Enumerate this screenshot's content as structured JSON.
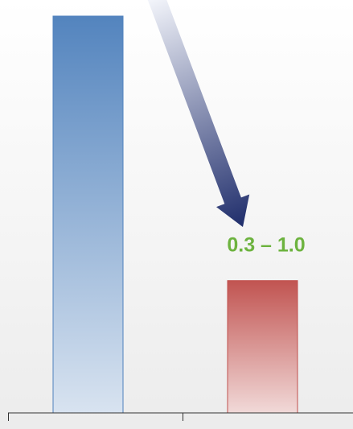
{
  "chart_data": {
    "type": "bar",
    "categories": [
      null,
      null
    ],
    "values": [
      3.0,
      1.0
    ],
    "colors": [
      "#4f81bd",
      "#c0504d"
    ],
    "ylim": [
      0,
      3
    ],
    "annotation": "0.3 – 1.0",
    "annotation_color": "#6db33f"
  }
}
